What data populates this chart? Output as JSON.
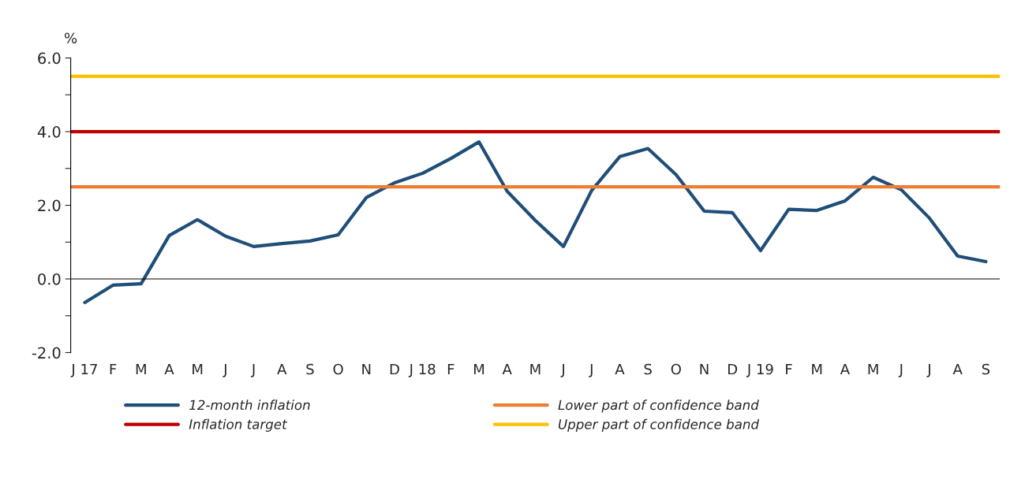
{
  "chart_data": {
    "type": "line",
    "ylabel": "%",
    "categories": [
      "J 17",
      "F",
      "M",
      "A",
      "M",
      "J",
      "J",
      "A",
      "S",
      "O",
      "N",
      "D",
      "J 18",
      "F",
      "M",
      "A",
      "M",
      "J",
      "J",
      "A",
      "S",
      "O",
      "N",
      "D",
      "J 19",
      "F",
      "M",
      "A",
      "M",
      "J",
      "J",
      "A",
      "S"
    ],
    "series": [
      {
        "name": "12-month inflation",
        "color": "#1f4e79",
        "values": [
          -0.64,
          -0.17,
          -0.13,
          1.18,
          1.61,
          1.16,
          0.88,
          0.96,
          1.03,
          1.2,
          2.21,
          2.61,
          2.87,
          3.27,
          3.72,
          2.38,
          1.59,
          0.88,
          2.4,
          3.32,
          3.54,
          2.83,
          1.84,
          1.8,
          0.77,
          1.89,
          1.86,
          2.12,
          2.76,
          2.42,
          1.65,
          0.62,
          0.47
        ]
      }
    ],
    "ref_lines": [
      {
        "axis": "y",
        "value": 4.0,
        "label": "Inflation target",
        "color": "#c00000"
      },
      {
        "axis": "y",
        "value": 2.5,
        "label": "Lower part of confidence band",
        "color": "#ed7d31"
      },
      {
        "axis": "y",
        "value": 5.5,
        "label": "Upper part of confidence band",
        "color": "#ffc000"
      }
    ],
    "ylim": [
      -2.0,
      6.0
    ],
    "yticks": [
      {
        "value": -2,
        "label": "-2.0"
      },
      {
        "value": -1,
        "label": null
      },
      {
        "value": 0,
        "label": "0.0"
      },
      {
        "value": 1,
        "label": null
      },
      {
        "value": 2,
        "label": "2.0"
      },
      {
        "value": 3,
        "label": null
      },
      {
        "value": 4,
        "label": "4.0"
      },
      {
        "value": 5,
        "label": null
      },
      {
        "value": 6,
        "label": "6.0"
      }
    ],
    "grid": false,
    "legend": "bottom",
    "marker": "none",
    "line_style": "solid"
  }
}
